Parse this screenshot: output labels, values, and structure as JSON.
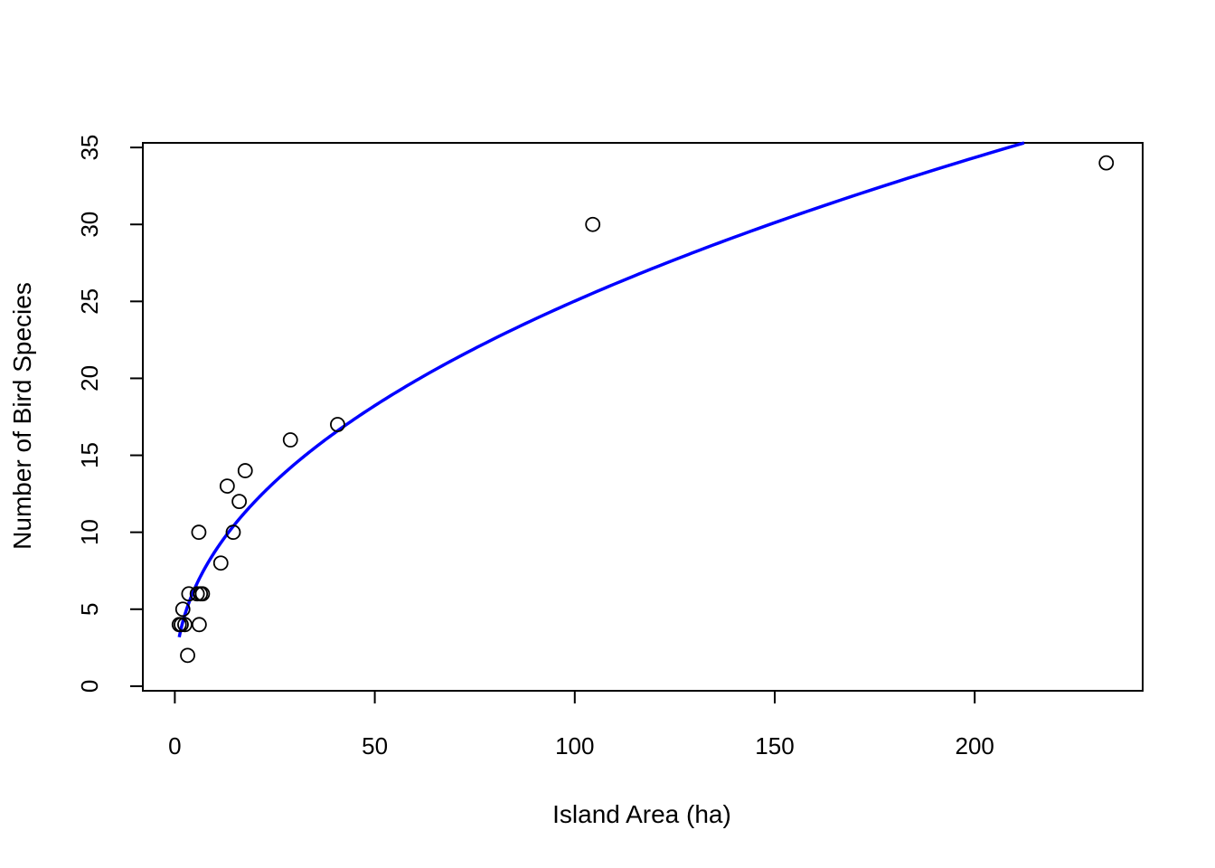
{
  "chart_data": {
    "type": "scatter",
    "xlabel": "Island Area (ha)",
    "ylabel": "Number of Bird Species",
    "xlim": [
      -8,
      242
    ],
    "ylim": [
      -0.3,
      35.3
    ],
    "x_ticks": [
      0,
      50,
      100,
      150,
      200
    ],
    "y_ticks": [
      0,
      5,
      10,
      15,
      20,
      25,
      30,
      35
    ],
    "grid": false,
    "series": [
      {
        "type": "scatter",
        "marker": "open-circle",
        "color": "#000000",
        "points": [
          {
            "x": 1.1,
            "y": 4
          },
          {
            "x": 1.6,
            "y": 4
          },
          {
            "x": 2.0,
            "y": 5
          },
          {
            "x": 2.5,
            "y": 4
          },
          {
            "x": 3.2,
            "y": 2
          },
          {
            "x": 3.5,
            "y": 6
          },
          {
            "x": 5.6,
            "y": 6
          },
          {
            "x": 6.0,
            "y": 10
          },
          {
            "x": 6.1,
            "y": 4
          },
          {
            "x": 6.4,
            "y": 6
          },
          {
            "x": 6.9,
            "y": 6
          },
          {
            "x": 11.5,
            "y": 8
          },
          {
            "x": 13.1,
            "y": 13
          },
          {
            "x": 14.6,
            "y": 10
          },
          {
            "x": 16.1,
            "y": 12
          },
          {
            "x": 17.6,
            "y": 14
          },
          {
            "x": 28.9,
            "y": 16
          },
          {
            "x": 40.7,
            "y": 17
          },
          {
            "x": 104.5,
            "y": 30
          },
          {
            "x": 232.9,
            "y": 34
          }
        ]
      },
      {
        "type": "line",
        "color": "#0000ff",
        "model": {
          "form": "power",
          "a": 3.05,
          "b": 0.457
        },
        "x_range": [
          1.1,
          232.9
        ]
      }
    ]
  }
}
